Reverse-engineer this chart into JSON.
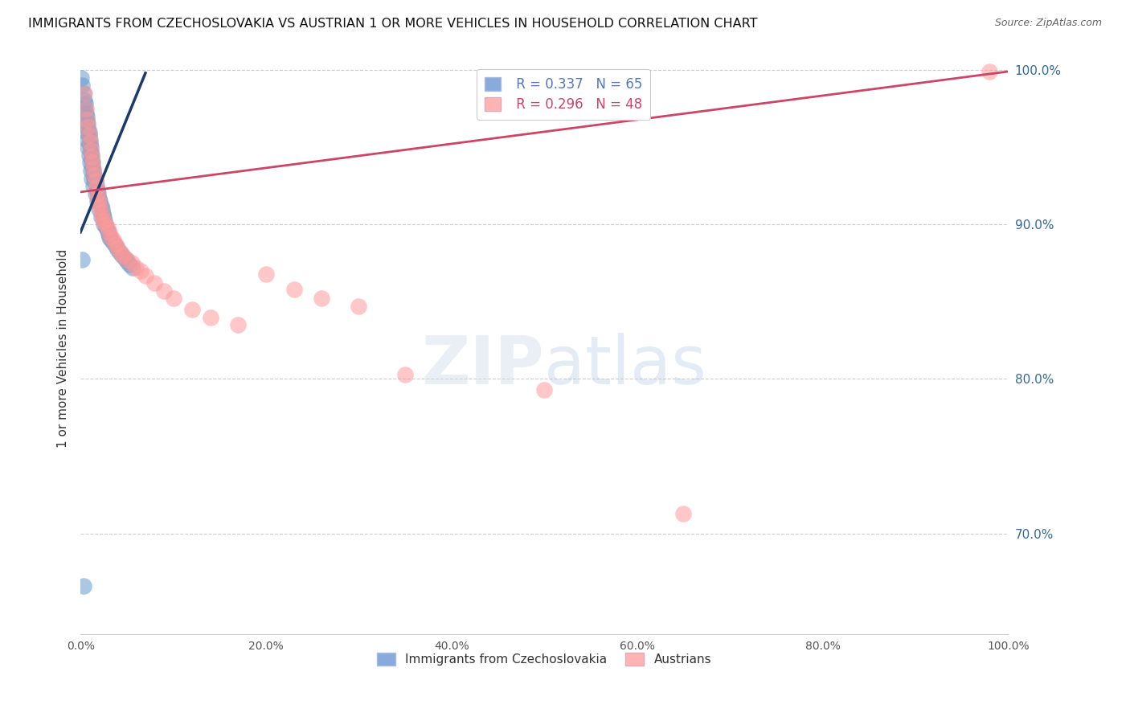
{
  "title": "IMMIGRANTS FROM CZECHOSLOVAKIA VS AUSTRIAN 1 OR MORE VEHICLES IN HOUSEHOLD CORRELATION CHART",
  "source": "Source: ZipAtlas.com",
  "ylabel": "1 or more Vehicles in Household",
  "legend_label1": "Immigrants from Czechoslovakia",
  "legend_label2": "Austrians",
  "R1": 0.337,
  "N1": 65,
  "R2": 0.296,
  "N2": 48,
  "xlim": [
    0.0,
    1.0
  ],
  "ylim": [
    0.635,
    1.005
  ],
  "xtick_positions": [
    0.0,
    0.2,
    0.4,
    0.6,
    0.8,
    1.0
  ],
  "xtick_labels": [
    "0.0%",
    "20.0%",
    "40.0%",
    "60.0%",
    "80.0%",
    "100.0%"
  ],
  "ytick_positions": [
    0.7,
    0.8,
    0.9,
    1.0
  ],
  "ytick_labels": [
    "70.0%",
    "80.0%",
    "90.0%",
    "100.0%"
  ],
  "color_blue": "#6699CC",
  "color_pink": "#FF9999",
  "color_blue_line": "#1a3a6b",
  "color_pink_line": "#cc4466",
  "color_blue_legend": "#88AADD",
  "color_pink_legend": "#FFB3B3",
  "color_axis_label": "#336699",
  "blue_x": [
    0.001,
    0.002,
    0.003,
    0.004,
    0.005,
    0.005,
    0.006,
    0.007,
    0.007,
    0.008,
    0.008,
    0.009,
    0.009,
    0.01,
    0.01,
    0.011,
    0.011,
    0.012,
    0.012,
    0.013,
    0.013,
    0.014,
    0.015,
    0.015,
    0.016,
    0.017,
    0.018,
    0.019,
    0.02,
    0.021,
    0.022,
    0.023,
    0.024,
    0.025,
    0.026,
    0.027,
    0.028,
    0.029,
    0.03,
    0.031,
    0.033,
    0.035,
    0.038,
    0.04,
    0.042,
    0.045,
    0.048,
    0.05,
    0.053,
    0.056,
    0.006,
    0.007,
    0.008,
    0.009,
    0.01,
    0.011,
    0.012,
    0.014,
    0.016,
    0.018,
    0.02,
    0.022,
    0.025,
    0.002,
    0.003
  ],
  "blue_y": [
    0.995,
    0.99,
    0.985,
    0.98,
    0.978,
    0.975,
    0.972,
    0.97,
    0.967,
    0.965,
    0.962,
    0.96,
    0.958,
    0.955,
    0.952,
    0.95,
    0.947,
    0.945,
    0.942,
    0.94,
    0.937,
    0.935,
    0.932,
    0.93,
    0.928,
    0.925,
    0.922,
    0.92,
    0.917,
    0.915,
    0.912,
    0.91,
    0.907,
    0.905,
    0.902,
    0.9,
    0.898,
    0.896,
    0.894,
    0.892,
    0.89,
    0.888,
    0.886,
    0.884,
    0.882,
    0.88,
    0.878,
    0.876,
    0.874,
    0.872,
    0.96,
    0.955,
    0.95,
    0.945,
    0.94,
    0.935,
    0.93,
    0.925,
    0.92,
    0.915,
    0.91,
    0.905,
    0.9,
    0.877,
    0.666
  ],
  "pink_x": [
    0.004,
    0.006,
    0.007,
    0.008,
    0.009,
    0.01,
    0.011,
    0.012,
    0.013,
    0.014,
    0.015,
    0.016,
    0.017,
    0.018,
    0.019,
    0.02,
    0.021,
    0.022,
    0.023,
    0.025,
    0.027,
    0.029,
    0.031,
    0.033,
    0.035,
    0.038,
    0.04,
    0.043,
    0.046,
    0.05,
    0.055,
    0.06,
    0.065,
    0.07,
    0.08,
    0.09,
    0.1,
    0.12,
    0.14,
    0.17,
    0.2,
    0.23,
    0.26,
    0.3,
    0.35,
    0.5,
    0.65,
    0.98
  ],
  "pink_y": [
    0.985,
    0.975,
    0.968,
    0.963,
    0.958,
    0.953,
    0.948,
    0.944,
    0.94,
    0.936,
    0.932,
    0.928,
    0.924,
    0.92,
    0.917,
    0.914,
    0.911,
    0.908,
    0.905,
    0.902,
    0.9,
    0.898,
    0.895,
    0.892,
    0.89,
    0.887,
    0.885,
    0.882,
    0.88,
    0.877,
    0.875,
    0.872,
    0.87,
    0.867,
    0.862,
    0.857,
    0.852,
    0.845,
    0.84,
    0.835,
    0.868,
    0.858,
    0.852,
    0.847,
    0.803,
    0.793,
    0.713,
    0.999
  ],
  "blue_trendline_x": [
    0.0,
    0.07
  ],
  "blue_trendline_y_start": 0.895,
  "blue_trendline_y_end": 0.998,
  "pink_trendline_x": [
    0.0,
    1.0
  ],
  "pink_trendline_y_start": 0.921,
  "pink_trendline_y_end": 0.999
}
